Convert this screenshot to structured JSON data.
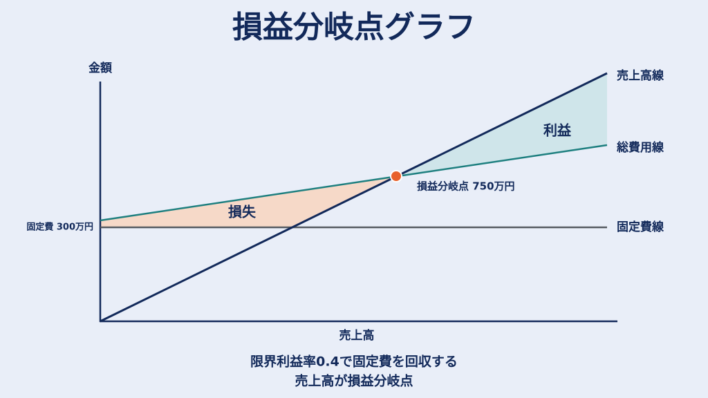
{
  "title": "損益分岐点グラフ",
  "axes": {
    "y_label": "金額",
    "x_label": "売上高"
  },
  "lines": {
    "sales": "売上高線",
    "total_cost": "総費用線",
    "fixed_cost": "固定費線"
  },
  "regions": {
    "profit": "利益",
    "loss": "損失"
  },
  "break_even_label": "損益分岐点 750万円",
  "fixed_cost_label": "固定費 300万円",
  "caption": [
    "限界利益率0.4で固定費を回収する",
    "売上高が損益分岐点"
  ]
}
